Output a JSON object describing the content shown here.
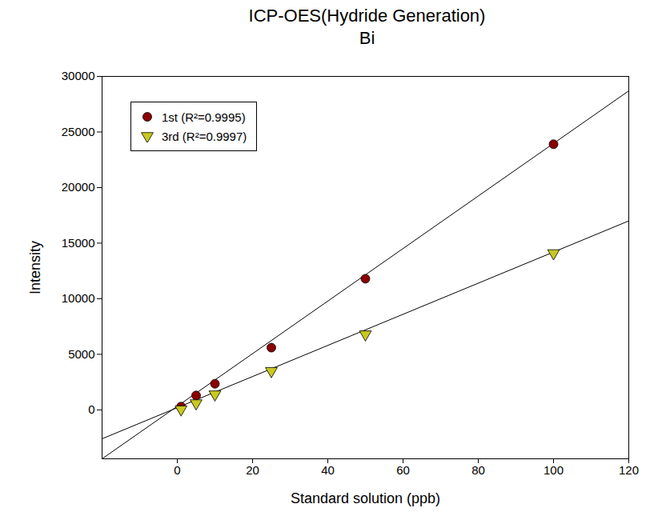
{
  "chart_data": {
    "type": "scatter",
    "title": "ICP-OES(Hydride Generation)",
    "subtitle": "Bi",
    "x_label": "Standard solution (ppb)",
    "y_label": "Intensity",
    "x": [
      1,
      5,
      10,
      25,
      50,
      100
    ],
    "series": [
      {
        "name": "1st (R²=0.9995)",
        "color": "#8b0000",
        "marker": "circle",
        "values": [
          300,
          1300,
          2350,
          5600,
          11800,
          23900
        ],
        "fit": {
          "x": [
            -20,
            120
          ],
          "values": [
            -4400,
            28700
          ]
        }
      },
      {
        "name": "3rd (R²=0.9997)",
        "color": "#c8c820",
        "marker": "triangle-down",
        "values": [
          50,
          600,
          1400,
          3500,
          6800,
          14100
        ],
        "fit": {
          "x": [
            -20,
            120
          ],
          "values": [
            -2600,
            17000
          ]
        }
      }
    ],
    "xlim": [
      -20,
      120
    ],
    "xticks": [
      0,
      20,
      40,
      60,
      80,
      100,
      120
    ],
    "ylim": [
      -4400,
      30000
    ],
    "yticks": [
      0,
      5000,
      10000,
      15000,
      20000,
      25000,
      30000
    ],
    "grid": false,
    "legend": "upper left"
  }
}
